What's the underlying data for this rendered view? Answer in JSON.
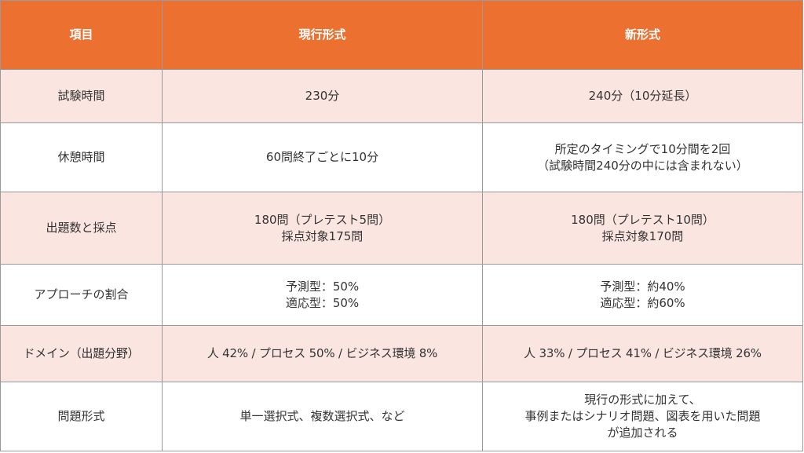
{
  "header": {
    "col1": "項目",
    "col2": "現行形式",
    "col3": "新形式"
  },
  "rows": [
    {
      "item": "試験時間",
      "current": [
        "230分"
      ],
      "new": [
        "240分（10分延長）"
      ]
    },
    {
      "item": "休憩時間",
      "current": [
        "60問終了ごとに10分"
      ],
      "new": [
        "所定のタイミングで10分間を2回",
        "（試験時間240分の中には含まれない）"
      ]
    },
    {
      "item": "出題数と採点",
      "current": [
        "180問（プレテスト5問）",
        "採点対象175問"
      ],
      "new": [
        "180問（プレテスト10問）",
        "採点対象170問"
      ]
    },
    {
      "item": "アプローチの割合",
      "current": [
        "予測型：50%",
        "適応型：50%"
      ],
      "new": [
        "予測型：約40%",
        "適応型：約60%"
      ]
    },
    {
      "item": "ドメイン（出題分野）",
      "current": [
        "人 42% / プロセス 50% / ビジネス環境 8%"
      ],
      "new": [
        "人 33% / プロセス 41% / ビジネス環境 26%"
      ]
    },
    {
      "item": "問題形式",
      "current": [
        "単一選択式、複数選択式、など"
      ],
      "new": [
        "現行の形式に加えて、",
        "事例またはシナリオ問題、図表を用いた問題",
        "が追加される"
      ]
    }
  ],
  "colors": {
    "header_bg": "#ec7030",
    "shade_bg": "#fbe5e0",
    "border": "#999999"
  }
}
